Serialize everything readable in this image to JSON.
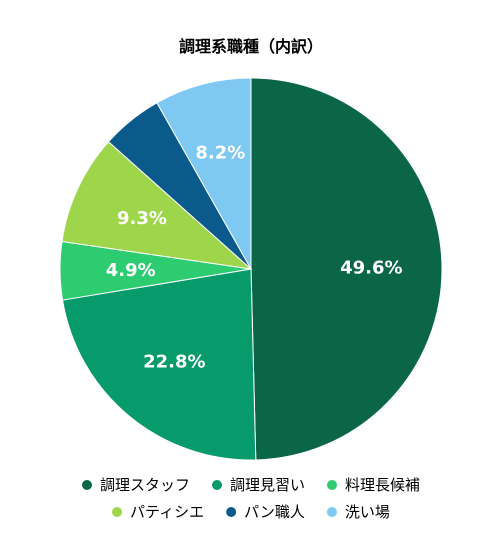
{
  "chart_data": {
    "type": "pie",
    "title": "調理系職種（内訳）",
    "categories": [
      "調理スタッフ",
      "調理見習い",
      "料理長候補",
      "パティシエ",
      "パン職人",
      "洗い場"
    ],
    "values": [
      49.6,
      22.8,
      4.9,
      9.3,
      5.2,
      8.2
    ],
    "data_labels": [
      "49.6%",
      "22.8%",
      "4.9%",
      "9.3%",
      "",
      "8.2%"
    ],
    "colors": [
      "#0b6647",
      "#079a6a",
      "#2ecc71",
      "#9ed64b",
      "#0b5a8c",
      "#7ec8f1"
    ],
    "legend_position": "bottom",
    "start_angle": "top",
    "direction": "clockwise"
  }
}
